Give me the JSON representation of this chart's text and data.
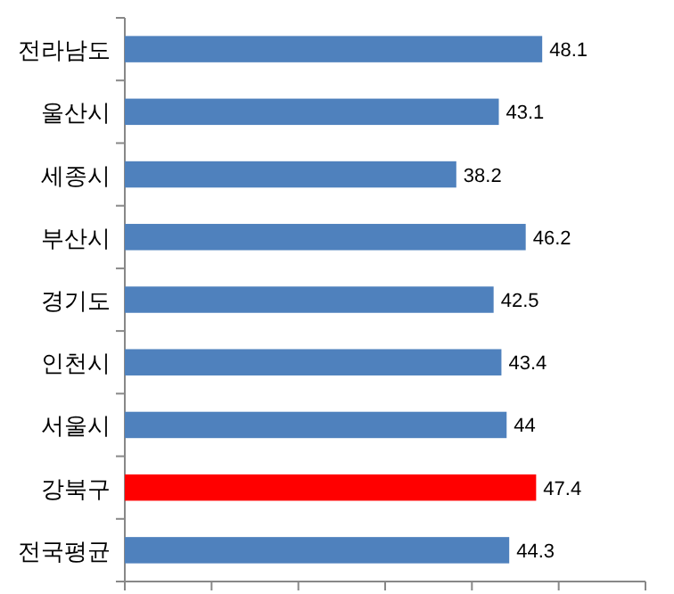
{
  "chart_data": {
    "type": "bar",
    "orientation": "horizontal",
    "categories": [
      "전라남도",
      "울산시",
      "세종시",
      "부산시",
      "경기도",
      "인천시",
      "서울시",
      "강북구",
      "전국평균"
    ],
    "values": [
      48.1,
      43.1,
      38.2,
      46.2,
      42.5,
      43.4,
      44,
      47.4,
      44.3
    ],
    "colors": [
      "#4f81bd",
      "#4f81bd",
      "#4f81bd",
      "#4f81bd",
      "#4f81bd",
      "#4f81bd",
      "#4f81bd",
      "#ff0000",
      "#4f81bd"
    ],
    "data_labels": true,
    "xlim": [
      0,
      60
    ],
    "xticks": [
      {
        "value": 0,
        "label": null
      },
      {
        "value": 10,
        "label": null
      },
      {
        "value": 20,
        "label": null
      },
      {
        "value": 30,
        "label": null
      },
      {
        "value": 40,
        "label": null
      },
      {
        "value": 50,
        "label": null
      },
      {
        "value": 60,
        "label": null
      }
    ],
    "tick_labels": "y"
  }
}
